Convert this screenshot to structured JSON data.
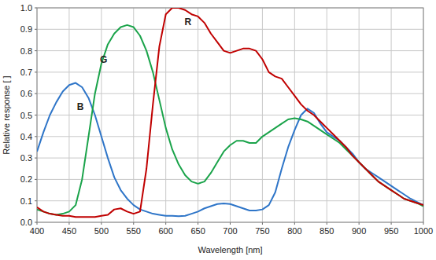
{
  "chart_data": {
    "type": "line",
    "x_label": "Wavelength [nm]",
    "y_label": "Relative response [ ]",
    "x": [
      400,
      410,
      420,
      430,
      440,
      450,
      460,
      470,
      480,
      490,
      500,
      510,
      520,
      530,
      540,
      550,
      560,
      570,
      580,
      590,
      600,
      610,
      620,
      630,
      640,
      650,
      660,
      670,
      680,
      690,
      700,
      710,
      720,
      730,
      740,
      750,
      760,
      770,
      780,
      790,
      800,
      810,
      820,
      830,
      840,
      850,
      860,
      870,
      880,
      890,
      900,
      910,
      920,
      930,
      940,
      950,
      960,
      970,
      980,
      990,
      1000
    ],
    "series": [
      {
        "name": "B",
        "color": "#2e75c8",
        "values": [
          0.33,
          0.42,
          0.5,
          0.56,
          0.61,
          0.64,
          0.65,
          0.63,
          0.58,
          0.5,
          0.4,
          0.3,
          0.21,
          0.15,
          0.11,
          0.08,
          0.06,
          0.05,
          0.04,
          0.035,
          0.03,
          0.03,
          0.028,
          0.03,
          0.04,
          0.05,
          0.065,
          0.075,
          0.085,
          0.088,
          0.085,
          0.075,
          0.065,
          0.055,
          0.055,
          0.06,
          0.08,
          0.14,
          0.25,
          0.35,
          0.43,
          0.5,
          0.53,
          0.51,
          0.46,
          0.42,
          0.4,
          0.38,
          0.35,
          0.32,
          0.28,
          0.25,
          0.23,
          0.21,
          0.19,
          0.17,
          0.15,
          0.13,
          0.11,
          0.095,
          0.08
        ]
      },
      {
        "name": "G",
        "color": "#1aa34a",
        "values": [
          0.06,
          0.05,
          0.04,
          0.035,
          0.04,
          0.05,
          0.08,
          0.2,
          0.4,
          0.6,
          0.74,
          0.83,
          0.88,
          0.91,
          0.92,
          0.91,
          0.87,
          0.8,
          0.7,
          0.57,
          0.44,
          0.34,
          0.27,
          0.22,
          0.19,
          0.18,
          0.19,
          0.23,
          0.28,
          0.33,
          0.36,
          0.38,
          0.38,
          0.37,
          0.37,
          0.4,
          0.42,
          0.44,
          0.46,
          0.48,
          0.485,
          0.48,
          0.47,
          0.45,
          0.43,
          0.41,
          0.39,
          0.37,
          0.34,
          0.31,
          0.28,
          0.25,
          0.22,
          0.19,
          0.17,
          0.15,
          0.13,
          0.11,
          0.1,
          0.09,
          0.075
        ]
      },
      {
        "name": "R",
        "color": "#c00000",
        "values": [
          0.07,
          0.05,
          0.04,
          0.035,
          0.03,
          0.03,
          0.025,
          0.025,
          0.025,
          0.025,
          0.03,
          0.035,
          0.06,
          0.065,
          0.05,
          0.04,
          0.05,
          0.25,
          0.55,
          0.82,
          0.97,
          1.0,
          1.0,
          0.99,
          0.97,
          0.96,
          0.93,
          0.88,
          0.84,
          0.8,
          0.79,
          0.8,
          0.81,
          0.81,
          0.8,
          0.76,
          0.7,
          0.68,
          0.67,
          0.63,
          0.59,
          0.55,
          0.52,
          0.5,
          0.47,
          0.44,
          0.41,
          0.38,
          0.35,
          0.31,
          0.28,
          0.25,
          0.22,
          0.19,
          0.17,
          0.15,
          0.13,
          0.11,
          0.1,
          0.09,
          0.08
        ]
      }
    ],
    "xlim": [
      400,
      1000
    ],
    "xticks": [
      400,
      450,
      500,
      550,
      600,
      650,
      700,
      750,
      800,
      850,
      900,
      950,
      1000
    ],
    "ylim": [
      0,
      1
    ],
    "yticks": [
      {
        "value": 0,
        "label": "0.0"
      },
      0.1,
      0.2,
      0.3,
      0.4,
      0.5,
      0.6,
      0.7,
      0.8,
      0.9,
      {
        "value": 1,
        "label": "1.0"
      }
    ],
    "grid": true
  }
}
